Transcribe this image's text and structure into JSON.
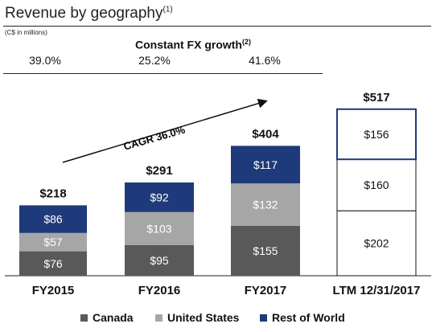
{
  "title": "Revenue by geography",
  "title_sup": "(1)",
  "units": "(C$ in millions)",
  "fx": {
    "header": "Constant FX growth",
    "header_sup": "(2)",
    "values": [
      "39.0%",
      "25.2%",
      "41.6%"
    ]
  },
  "cagr_label": "CAGR 36.0%",
  "colors": {
    "canada": "#595959",
    "united_states": "#a6a6a6",
    "rest_of_world": "#1f3a7a",
    "ltm_border": "#1f3a7a",
    "ltm_outline": "#111111"
  },
  "chart_data": {
    "type": "bar",
    "stacked": true,
    "categories": [
      "FY2015",
      "FY2016",
      "FY2017",
      "LTM 12/31/2017"
    ],
    "series": [
      {
        "name": "Canada",
        "values": [
          76,
          95,
          155,
          202
        ],
        "labels": [
          "$76",
          "$95",
          "$155",
          "$202"
        ]
      },
      {
        "name": "United States",
        "values": [
          57,
          103,
          132,
          160
        ],
        "labels": [
          "$57",
          "$103",
          "$132",
          "$160"
        ]
      },
      {
        "name": "Rest of World",
        "values": [
          86,
          92,
          117,
          156
        ],
        "labels": [
          "$86",
          "$92",
          "$117",
          "$156"
        ]
      }
    ],
    "totals": [
      218,
      291,
      404,
      517
    ],
    "total_labels": [
      "$218",
      "$291",
      "$404",
      "$517"
    ],
    "legend_position": "bottom"
  }
}
